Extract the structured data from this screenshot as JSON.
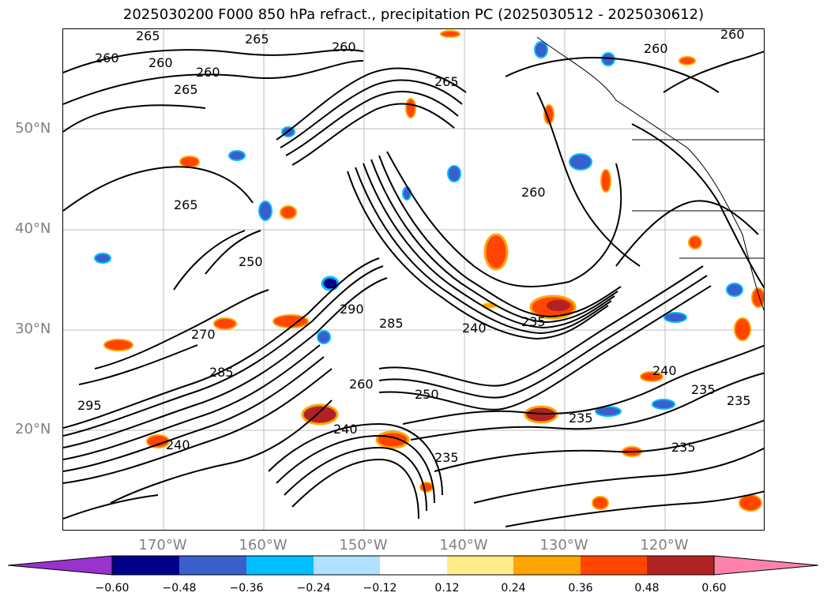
{
  "title": "2025030200 F000 850 hPa refract., precipitation PC (2025030512 - 2025030612)",
  "lat_labels": [
    "50°N",
    "40°N",
    "30°N",
    "20°N"
  ],
  "lon_labels": [
    "170°W",
    "160°W",
    "150°W",
    "140°W",
    "130°W",
    "120°W"
  ],
  "contour_labels": [
    "265",
    "260",
    "260",
    "260",
    "265",
    "265",
    "260",
    "260",
    "260",
    "260",
    "265",
    "265",
    "250",
    "290",
    "285",
    "240",
    "235",
    "240",
    "235",
    "260",
    "250",
    "240",
    "235",
    "235",
    "235",
    "270",
    "295",
    "285",
    "240",
    "235"
  ],
  "colorbar": {
    "ticks": [
      "−0.60",
      "−0.48",
      "−0.36",
      "−0.24",
      "−0.12",
      "0.12",
      "0.24",
      "0.36",
      "0.48",
      "0.60"
    ],
    "colors": [
      "#9a32cd",
      "#00008b",
      "#3a5fcd",
      "#00bfff",
      "#b0e2ff",
      "#ffffff",
      "#ffec8b",
      "#ffa500",
      "#ff4500",
      "#b22222",
      "#ff82ab"
    ]
  }
}
